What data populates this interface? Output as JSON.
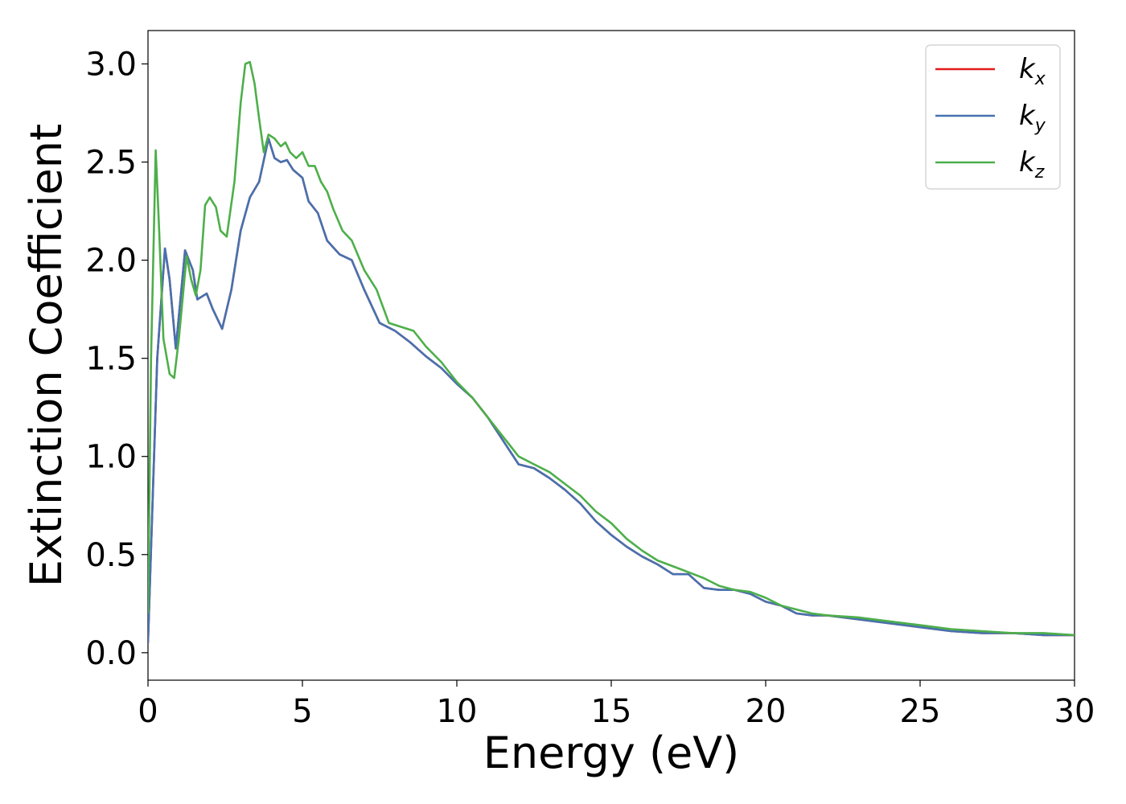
{
  "chart_data": {
    "type": "line",
    "xlabel": "Energy (eV)",
    "ylabel": "Extinction Coefficient",
    "xlim": [
      0,
      30
    ],
    "ylim": [
      -0.14,
      3.17
    ],
    "xticks": [
      0,
      5,
      10,
      15,
      20,
      25,
      30
    ],
    "xtick_labels": [
      "0",
      "5",
      "10",
      "15",
      "20",
      "25",
      "30"
    ],
    "yticks": [
      0.0,
      0.5,
      1.0,
      1.5,
      2.0,
      2.5,
      3.0
    ],
    "ytick_labels": [
      "0.0",
      "0.5",
      "1.0",
      "1.5",
      "2.0",
      "2.5",
      "3.0"
    ],
    "grid": false,
    "legend_position": "top-right",
    "series": [
      {
        "name": "k",
        "subscript": "x",
        "color": "#e41a1c",
        "x": [
          0,
          0.3,
          0.55,
          0.7,
          0.9,
          1.2,
          1.45,
          1.6,
          1.9,
          2.1,
          2.4,
          2.7,
          3.0,
          3.3,
          3.6,
          3.9,
          4.1,
          4.3,
          4.5,
          4.7,
          5.0,
          5.2,
          5.5,
          5.8,
          6.2,
          6.6,
          7.0,
          7.5,
          8.0,
          8.5,
          9.0,
          9.5,
          10.0,
          10.5,
          11.0,
          11.5,
          12.0,
          12.5,
          13.0,
          13.5,
          14.0,
          14.5,
          15.0,
          15.5,
          16.0,
          16.5,
          17.0,
          17.5,
          18.0,
          18.5,
          19.0,
          19.5,
          20.0,
          20.5,
          21.0,
          21.5,
          22.0,
          23.0,
          24.0,
          25.0,
          26.0,
          27.0,
          28.0,
          29.0,
          30.0
        ],
        "y": [
          0.05,
          1.5,
          2.06,
          1.9,
          1.55,
          2.05,
          1.95,
          1.8,
          1.83,
          1.75,
          1.65,
          1.85,
          2.15,
          2.32,
          2.4,
          2.62,
          2.52,
          2.5,
          2.51,
          2.46,
          2.42,
          2.3,
          2.24,
          2.1,
          2.03,
          2.0,
          1.85,
          1.68,
          1.64,
          1.58,
          1.51,
          1.45,
          1.37,
          1.3,
          1.2,
          1.08,
          0.96,
          0.94,
          0.89,
          0.83,
          0.76,
          0.67,
          0.6,
          0.54,
          0.49,
          0.45,
          0.4,
          0.4,
          0.33,
          0.32,
          0.32,
          0.3,
          0.26,
          0.24,
          0.2,
          0.19,
          0.19,
          0.17,
          0.15,
          0.13,
          0.11,
          0.1,
          0.1,
          0.09,
          0.09
        ]
      },
      {
        "name": "k",
        "subscript": "y",
        "color": "#4572b0",
        "x": [
          0,
          0.3,
          0.55,
          0.7,
          0.9,
          1.2,
          1.45,
          1.6,
          1.9,
          2.1,
          2.4,
          2.7,
          3.0,
          3.3,
          3.6,
          3.9,
          4.1,
          4.3,
          4.5,
          4.7,
          5.0,
          5.2,
          5.5,
          5.8,
          6.2,
          6.6,
          7.0,
          7.5,
          8.0,
          8.5,
          9.0,
          9.5,
          10.0,
          10.5,
          11.0,
          11.5,
          12.0,
          12.5,
          13.0,
          13.5,
          14.0,
          14.5,
          15.0,
          15.5,
          16.0,
          16.5,
          17.0,
          17.5,
          18.0,
          18.5,
          19.0,
          19.5,
          20.0,
          20.5,
          21.0,
          21.5,
          22.0,
          23.0,
          24.0,
          25.0,
          26.0,
          27.0,
          28.0,
          29.0,
          30.0
        ],
        "y": [
          0.05,
          1.5,
          2.06,
          1.9,
          1.55,
          2.05,
          1.95,
          1.8,
          1.83,
          1.75,
          1.65,
          1.85,
          2.15,
          2.32,
          2.4,
          2.62,
          2.52,
          2.5,
          2.51,
          2.46,
          2.42,
          2.3,
          2.24,
          2.1,
          2.03,
          2.0,
          1.85,
          1.68,
          1.64,
          1.58,
          1.51,
          1.45,
          1.37,
          1.3,
          1.2,
          1.08,
          0.96,
          0.94,
          0.89,
          0.83,
          0.76,
          0.67,
          0.6,
          0.54,
          0.49,
          0.45,
          0.4,
          0.4,
          0.33,
          0.32,
          0.32,
          0.3,
          0.26,
          0.24,
          0.2,
          0.19,
          0.19,
          0.17,
          0.15,
          0.13,
          0.11,
          0.1,
          0.1,
          0.09,
          0.09
        ]
      },
      {
        "name": "k",
        "subscript": "z",
        "color": "#4daf4a",
        "x": [
          0,
          0.1,
          0.25,
          0.35,
          0.5,
          0.7,
          0.85,
          1.0,
          1.25,
          1.4,
          1.55,
          1.7,
          1.85,
          2.0,
          2.2,
          2.35,
          2.55,
          2.8,
          3.0,
          3.15,
          3.3,
          3.45,
          3.6,
          3.75,
          3.9,
          4.1,
          4.3,
          4.45,
          4.6,
          4.8,
          5.0,
          5.2,
          5.4,
          5.6,
          5.8,
          6.0,
          6.3,
          6.6,
          7.0,
          7.4,
          7.8,
          8.2,
          8.6,
          9.0,
          9.5,
          10.0,
          10.5,
          11.0,
          11.5,
          12.0,
          12.5,
          13.0,
          13.5,
          14.0,
          14.5,
          15.0,
          15.5,
          16.0,
          16.5,
          17.0,
          17.5,
          18.0,
          18.5,
          19.0,
          19.5,
          20.0,
          20.5,
          21.0,
          21.5,
          22.0,
          23.0,
          24.0,
          25.0,
          26.0,
          27.0,
          28.0,
          29.0,
          30.0
        ],
        "y": [
          0.2,
          1.5,
          2.56,
          2.2,
          1.6,
          1.42,
          1.4,
          1.6,
          2.02,
          1.9,
          1.82,
          1.95,
          2.28,
          2.32,
          2.27,
          2.15,
          2.12,
          2.4,
          2.8,
          3.0,
          3.01,
          2.9,
          2.72,
          2.55,
          2.64,
          2.62,
          2.58,
          2.6,
          2.55,
          2.52,
          2.55,
          2.48,
          2.48,
          2.4,
          2.35,
          2.26,
          2.15,
          2.1,
          1.95,
          1.85,
          1.68,
          1.66,
          1.64,
          1.56,
          1.48,
          1.38,
          1.3,
          1.2,
          1.1,
          1.0,
          0.96,
          0.92,
          0.86,
          0.8,
          0.72,
          0.66,
          0.58,
          0.52,
          0.47,
          0.44,
          0.41,
          0.38,
          0.34,
          0.32,
          0.31,
          0.28,
          0.24,
          0.22,
          0.2,
          0.19,
          0.18,
          0.16,
          0.14,
          0.12,
          0.11,
          0.1,
          0.1,
          0.09
        ]
      }
    ]
  }
}
